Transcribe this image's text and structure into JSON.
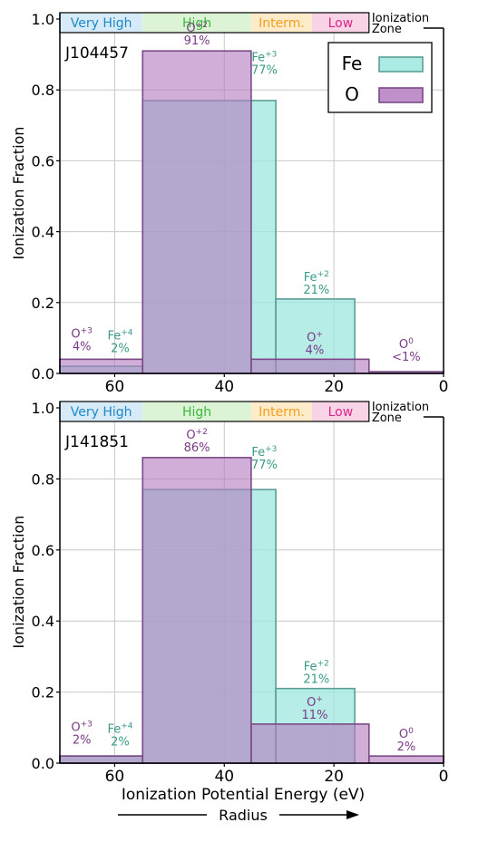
{
  "colors": {
    "fe_fill": "#9ee8df",
    "fe_stroke": "#5a9e96",
    "o_fill": "#b47cc0",
    "o_stroke": "#7a4a86",
    "o_label": "#7a3a86",
    "fe_label": "#3a9a8a",
    "zone_very_high_bg": "#d6ebf7",
    "zone_very_high_text": "#1e88c8",
    "zone_high_bg": "#dcf3d6",
    "zone_high_text": "#3cb83c",
    "zone_interm_bg": "#fdebc9",
    "zone_interm_text": "#f2a01e",
    "zone_low_bg": "#f8d4e6",
    "zone_low_text": "#d8268a"
  },
  "shared": {
    "xlabel": "Ionization Potential Energy (eV)",
    "ylabel": "Ionization Fraction",
    "radius_label": "Radius",
    "zone_caption_line1": "Ionization",
    "zone_caption_line2": "Zone",
    "legend": [
      {
        "name": "Fe",
        "color_key": "fe"
      },
      {
        "name": "O",
        "color_key": "o"
      }
    ]
  },
  "chart_data": [
    {
      "type": "bar",
      "title": "J104457",
      "x_axis": {
        "range": [
          70,
          0
        ],
        "reversed": true,
        "ticks": [
          60,
          40,
          20,
          0
        ]
      },
      "y_axis": {
        "range": [
          0,
          1.0
        ],
        "ticks": [
          0.0,
          0.2,
          0.4,
          0.6,
          0.8,
          1.0
        ]
      },
      "grid": true,
      "legend_position": "top-right",
      "zones": [
        {
          "name": "Very High",
          "x_range": [
            70,
            54.9
          ]
        },
        {
          "name": "High",
          "x_range": [
            54.9,
            35.1
          ]
        },
        {
          "name": "Interm.",
          "x_range": [
            35.1,
            24.0
          ]
        },
        {
          "name": "Low",
          "x_range": [
            24.0,
            13.6
          ]
        }
      ],
      "series": [
        {
          "name": "Fe",
          "bars": [
            {
              "x_range": [
                70,
                54.9
              ],
              "value": 0.02,
              "ion": "Fe",
              "charge": "+4",
              "pct": "2%"
            },
            {
              "x_range": [
                54.9,
                30.6
              ],
              "value": 0.77,
              "ion": "Fe",
              "charge": "+3",
              "pct": "77%"
            },
            {
              "x_range": [
                30.6,
                16.2
              ],
              "value": 0.21,
              "ion": "Fe",
              "charge": "+2",
              "pct": "21%"
            }
          ]
        },
        {
          "name": "O",
          "bars": [
            {
              "x_range": [
                70,
                54.9
              ],
              "value": 0.04,
              "ion": "O",
              "charge": "+3",
              "pct": "4%"
            },
            {
              "x_range": [
                54.9,
                35.1
              ],
              "value": 0.91,
              "ion": "O",
              "charge": "+2",
              "pct": "91%"
            },
            {
              "x_range": [
                35.1,
                13.6
              ],
              "value": 0.04,
              "ion": "O",
              "charge": "+",
              "pct": "4%"
            },
            {
              "x_range": [
                13.6,
                0
              ],
              "value": 0.005,
              "ion": "O",
              "charge": "0",
              "pct": "<1%"
            }
          ]
        }
      ]
    },
    {
      "type": "bar",
      "title": "J141851",
      "x_axis": {
        "range": [
          70,
          0
        ],
        "reversed": true,
        "ticks": [
          60,
          40,
          20,
          0
        ]
      },
      "y_axis": {
        "range": [
          0,
          1.0
        ],
        "ticks": [
          0.0,
          0.2,
          0.4,
          0.6,
          0.8,
          1.0
        ]
      },
      "grid": true,
      "zones": [
        {
          "name": "Very High",
          "x_range": [
            70,
            54.9
          ]
        },
        {
          "name": "High",
          "x_range": [
            54.9,
            35.1
          ]
        },
        {
          "name": "Interm.",
          "x_range": [
            35.1,
            24.0
          ]
        },
        {
          "name": "Low",
          "x_range": [
            24.0,
            13.6
          ]
        }
      ],
      "series": [
        {
          "name": "Fe",
          "bars": [
            {
              "x_range": [
                70,
                54.9
              ],
              "value": 0.02,
              "ion": "Fe",
              "charge": "+4",
              "pct": "2%"
            },
            {
              "x_range": [
                54.9,
                30.6
              ],
              "value": 0.77,
              "ion": "Fe",
              "charge": "+3",
              "pct": "77%"
            },
            {
              "x_range": [
                30.6,
                16.2
              ],
              "value": 0.21,
              "ion": "Fe",
              "charge": "+2",
              "pct": "21%"
            }
          ]
        },
        {
          "name": "O",
          "bars": [
            {
              "x_range": [
                70,
                54.9
              ],
              "value": 0.02,
              "ion": "O",
              "charge": "+3",
              "pct": "2%"
            },
            {
              "x_range": [
                54.9,
                35.1
              ],
              "value": 0.86,
              "ion": "O",
              "charge": "+2",
              "pct": "86%"
            },
            {
              "x_range": [
                35.1,
                13.6
              ],
              "value": 0.11,
              "ion": "O",
              "charge": "+",
              "pct": "11%"
            },
            {
              "x_range": [
                13.6,
                0
              ],
              "value": 0.02,
              "ion": "O",
              "charge": "0",
              "pct": "2%"
            }
          ]
        }
      ]
    }
  ]
}
